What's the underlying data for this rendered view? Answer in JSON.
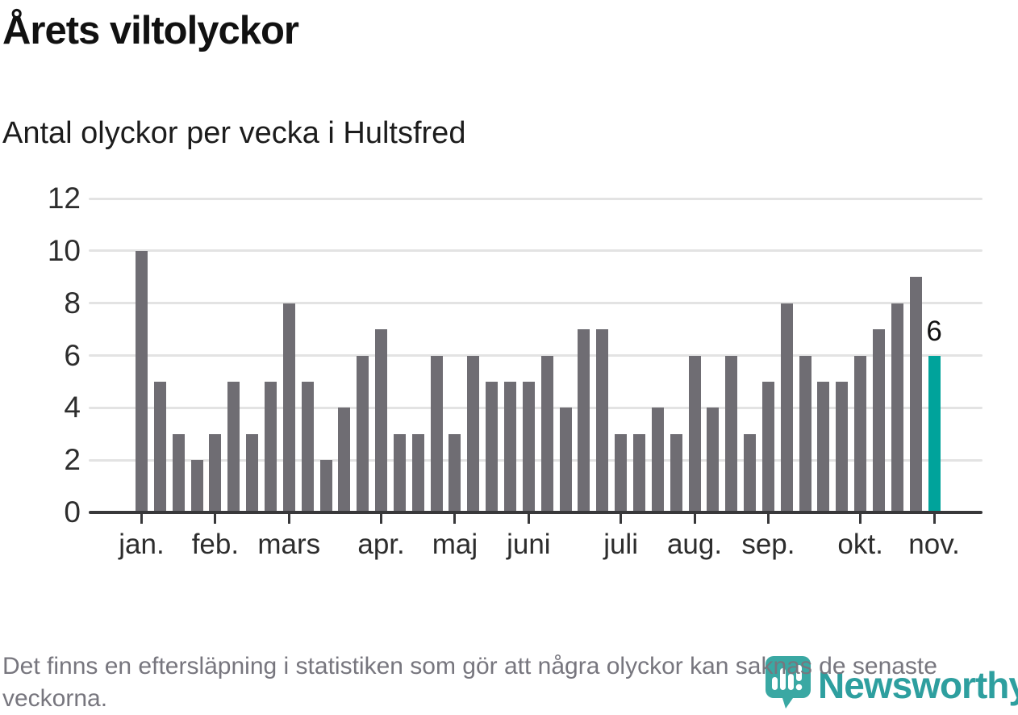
{
  "title": "Årets viltolyckor",
  "subtitle": "Antal olyckor per vecka i Hultsfred",
  "footnote": "Det finns en eftersläpning i statistiken som gör att några olyckor kan saknas de senaste veckorna.",
  "logo": {
    "wordmark": "Newsworthy",
    "badge_icon": "bar-chart-exclamation-pin"
  },
  "colors": {
    "bar": "#6F6D73",
    "highlight": "#00A39B",
    "grid": "#E3E3E3",
    "axis": "#38383A",
    "label_text": "#2D2D2D",
    "title_text": "#111111",
    "footer_text": "#77767E",
    "logo_teal": "#2E9F9F",
    "badge_teal": "#3AA8A3"
  },
  "chart_data": {
    "type": "bar",
    "title": "Årets viltolyckor",
    "subtitle": "Antal olyckor per vecka i Hultsfred",
    "x_unit": "week",
    "categories_note": "weeks 1-44 of the year",
    "values": [
      10,
      5,
      3,
      2,
      3,
      5,
      3,
      5,
      8,
      5,
      2,
      4,
      6,
      7,
      3,
      3,
      6,
      3,
      6,
      5,
      5,
      5,
      6,
      4,
      7,
      7,
      3,
      3,
      4,
      3,
      6,
      4,
      6,
      3,
      5,
      8,
      6,
      5,
      5,
      6,
      7,
      8,
      9,
      6
    ],
    "highlight_index": 43,
    "highlight_label": "6",
    "ylim": [
      0,
      12
    ],
    "yticks": [
      0,
      2,
      4,
      6,
      8,
      10,
      12
    ],
    "grid": "horizontal",
    "legend": "none",
    "months": [
      {
        "label": "jan.",
        "week": 1
      },
      {
        "label": "feb.",
        "week": 5
      },
      {
        "label": "mars",
        "week": 9
      },
      {
        "label": "apr.",
        "week": 14
      },
      {
        "label": "maj",
        "week": 18
      },
      {
        "label": "juni",
        "week": 22
      },
      {
        "label": "juli",
        "week": 27
      },
      {
        "label": "aug.",
        "week": 31
      },
      {
        "label": "sep.",
        "week": 35
      },
      {
        "label": "okt.",
        "week": 40
      },
      {
        "label": "nov.",
        "week": 44
      }
    ]
  }
}
